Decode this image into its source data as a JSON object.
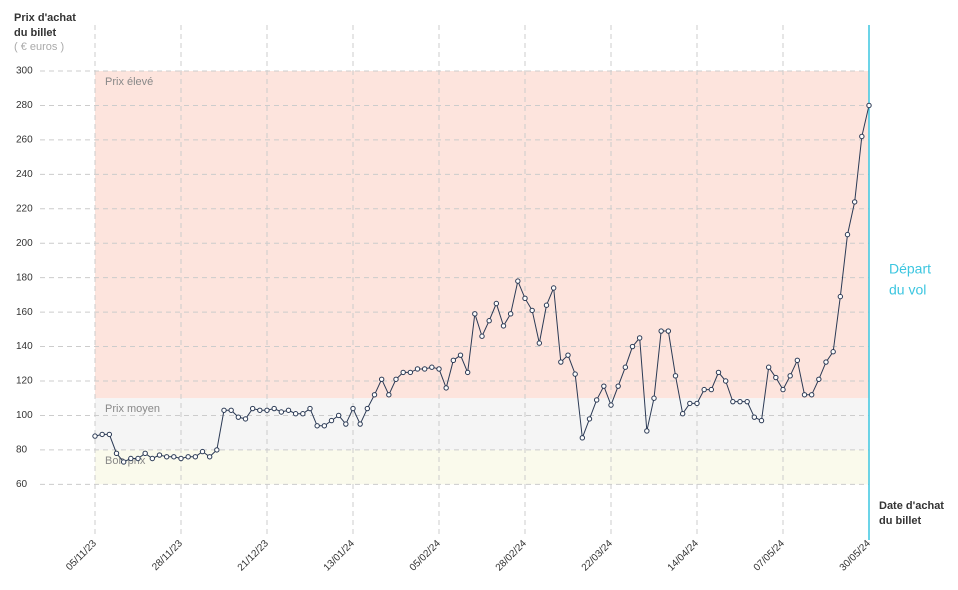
{
  "chart_data": {
    "type": "line",
    "y_label": [
      "Prix d'achat",
      "du billet"
    ],
    "y_unit": "( € euros )",
    "x_label": [
      "Date d'achat",
      "du billet"
    ],
    "annotation": {
      "lines": [
        "Départ",
        "du vol"
      ],
      "color": "#3cc6e0"
    },
    "color": "#2b3a55",
    "ylim": [
      30,
      300
    ],
    "yticks": [
      60,
      80,
      100,
      120,
      140,
      160,
      180,
      200,
      220,
      240,
      260,
      280,
      300
    ],
    "grid": true,
    "bands": [
      {
        "label": "Prix élevé",
        "from": 110,
        "to": 300,
        "color": "#fde4dd"
      },
      {
        "label": "Prix moyen",
        "from": 80,
        "to": 110,
        "color": "#f5f5f5"
      },
      {
        "label": "Bon prix",
        "from": 60,
        "to": 80,
        "color": "#fafaec"
      }
    ],
    "categories": [
      "05/11/23",
      null,
      null,
      null,
      null,
      null,
      null,
      null,
      null,
      null,
      null,
      null,
      "28/11/23",
      null,
      null,
      null,
      null,
      null,
      null,
      null,
      null,
      null,
      null,
      null,
      "21/12/23",
      null,
      null,
      null,
      null,
      null,
      null,
      null,
      null,
      null,
      null,
      null,
      "13/01/24",
      null,
      null,
      null,
      null,
      null,
      null,
      null,
      null,
      null,
      null,
      null,
      "05/02/24",
      null,
      null,
      null,
      null,
      null,
      null,
      null,
      null,
      null,
      null,
      null,
      "28/02/24",
      null,
      null,
      null,
      null,
      null,
      null,
      null,
      null,
      null,
      null,
      null,
      "22/03/24",
      null,
      null,
      null,
      null,
      null,
      null,
      null,
      null,
      null,
      null,
      null,
      "14/04/24",
      null,
      null,
      null,
      null,
      null,
      null,
      null,
      null,
      null,
      null,
      null,
      "07/05/24",
      null,
      null,
      null,
      null,
      null,
      null,
      null,
      null,
      null,
      null,
      null,
      "30/05/24"
    ],
    "values": [
      88,
      89,
      89,
      78,
      73,
      75,
      75,
      78,
      75,
      77,
      76,
      76,
      75,
      76,
      76,
      79,
      76,
      80,
      103,
      103,
      99,
      98,
      104,
      103,
      103,
      104,
      102,
      103,
      101,
      101,
      104,
      94,
      94,
      97,
      100,
      95,
      104,
      95,
      104,
      112,
      121,
      112,
      121,
      125,
      125,
      127,
      127,
      128,
      127,
      116,
      132,
      135,
      125,
      159,
      146,
      155,
      165,
      152,
      159,
      178,
      168,
      161,
      142,
      164,
      174,
      131,
      135,
      124,
      87,
      98,
      109,
      117,
      106,
      117,
      128,
      140,
      145,
      91,
      110,
      149,
      149,
      123,
      101,
      107,
      107,
      115,
      115,
      125,
      120,
      108,
      108,
      108,
      99,
      97,
      128,
      122,
      115,
      123,
      132,
      112,
      112,
      121,
      131,
      137,
      169,
      205,
      224,
      262,
      280
    ]
  }
}
